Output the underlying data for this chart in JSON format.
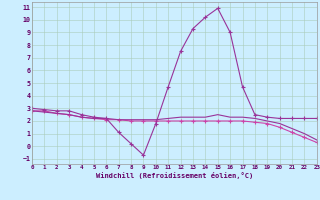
{
  "xlabel": "Windchill (Refroidissement éolien,°C)",
  "x": [
    0,
    1,
    2,
    3,
    4,
    5,
    6,
    7,
    8,
    9,
    10,
    11,
    12,
    13,
    14,
    15,
    16,
    17,
    18,
    19,
    20,
    21,
    22,
    23
  ],
  "line1": [
    3.0,
    2.9,
    2.8,
    2.8,
    2.5,
    2.3,
    2.2,
    1.1,
    0.2,
    -0.7,
    1.8,
    4.7,
    7.5,
    9.3,
    10.2,
    10.9,
    9.0,
    4.7,
    2.5,
    2.3,
    2.2,
    2.2,
    2.2,
    2.2
  ],
  "line2": [
    2.8,
    2.8,
    2.6,
    2.5,
    2.3,
    2.2,
    2.1,
    2.1,
    2.0,
    2.0,
    2.0,
    2.0,
    2.0,
    2.0,
    2.0,
    2.0,
    2.0,
    2.0,
    1.9,
    1.8,
    1.5,
    1.1,
    0.7,
    0.3
  ],
  "line3": [
    2.8,
    2.7,
    2.6,
    2.5,
    2.3,
    2.2,
    2.2,
    2.1,
    2.1,
    2.1,
    2.1,
    2.2,
    2.3,
    2.3,
    2.3,
    2.5,
    2.3,
    2.3,
    2.2,
    2.0,
    1.8,
    1.4,
    1.0,
    0.5
  ],
  "line_color1": "#993399",
  "line_color2": "#cc44aa",
  "line_color3": "#993399",
  "bg_color": "#cceeff",
  "grid_color": "#aaccbb",
  "text_color": "#660066",
  "xlim": [
    0,
    23
  ],
  "ylim": [
    -1.4,
    11.4
  ],
  "yticks": [
    -1,
    0,
    1,
    2,
    3,
    4,
    5,
    6,
    7,
    8,
    9,
    10,
    11
  ],
  "xticks": [
    0,
    1,
    2,
    3,
    4,
    5,
    6,
    7,
    8,
    9,
    10,
    11,
    12,
    13,
    14,
    15,
    16,
    17,
    18,
    19,
    20,
    21,
    22,
    23
  ],
  "marker": "+",
  "markersize": 3,
  "linewidth": 0.8
}
